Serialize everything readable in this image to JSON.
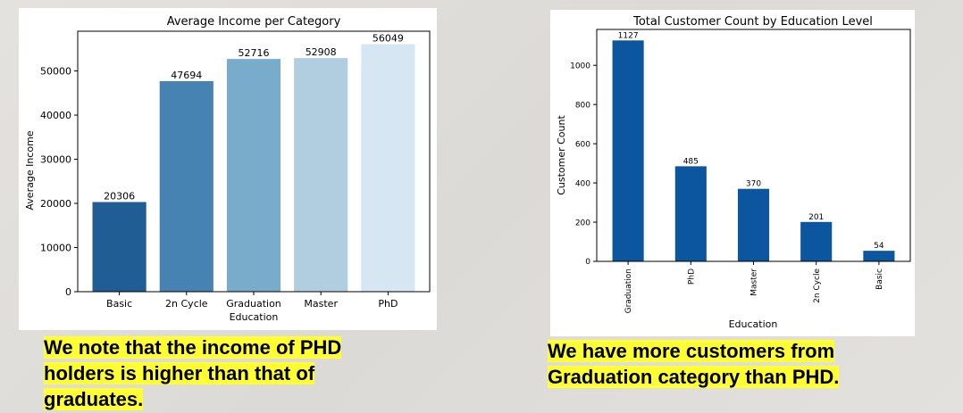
{
  "chart_data": [
    {
      "type": "bar",
      "title": "Average Income per Category",
      "xlabel": "Education",
      "ylabel": "Average Income",
      "categories": [
        "Basic",
        "2n Cycle",
        "Graduation",
        "Master",
        "PhD"
      ],
      "values": [
        20306,
        47694,
        52716,
        52908,
        56049
      ],
      "data_labels": [
        "20306",
        "47694",
        "52716",
        "52908",
        "56049"
      ],
      "colors": [
        "#215d95",
        "#4683b2",
        "#79abca",
        "#b0cee0",
        "#d6e6f2"
      ],
      "ylim": [
        0,
        59000
      ],
      "yticks": [
        0,
        10000,
        20000,
        30000,
        40000,
        50000
      ],
      "grid": false,
      "legend": "none"
    },
    {
      "type": "bar",
      "title": "Total Customer Count by Education Level",
      "xlabel": "Education",
      "ylabel": "Customer Count",
      "categories": [
        "Graduation",
        "PhD",
        "Master",
        "2n Cycle",
        "Basic"
      ],
      "values": [
        1127,
        485,
        370,
        201,
        54
      ],
      "data_labels": [
        "1127",
        "485",
        "370",
        "201",
        "54"
      ],
      "color": "#0c56a0",
      "ylim": [
        0,
        1183
      ],
      "yticks": [
        0,
        200,
        400,
        600,
        800,
        1000
      ],
      "grid": false,
      "legend": "none"
    }
  ],
  "captions": {
    "left": "We note that the income of PHD holders is higher than that of graduates.",
    "right": "We have more customers from Graduation category than PHD."
  }
}
